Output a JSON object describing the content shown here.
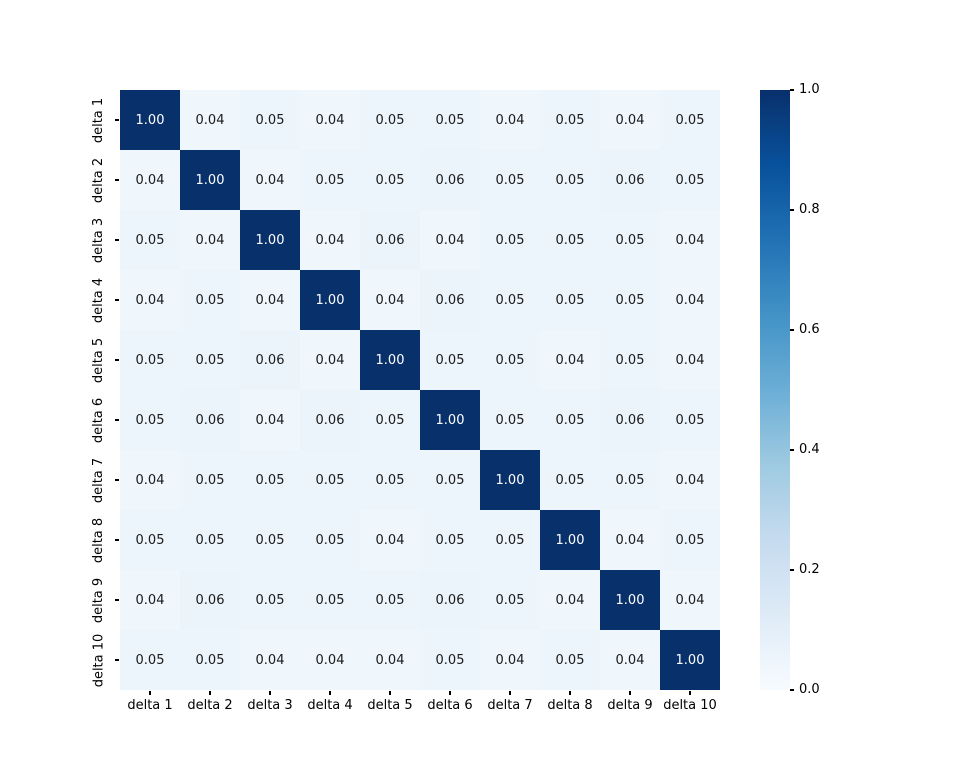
{
  "figure": {
    "background": "#ffffff",
    "axis_tick_color": "#000000",
    "axis_label_color": "#000000",
    "annotation_text_dark": "#1a1a1a",
    "annotation_text_light": "#ffffff",
    "colormap": {
      "name": "Blues",
      "stops": [
        "#f7fbff",
        "#deebf7",
        "#c6dbef",
        "#9ecae1",
        "#6baed6",
        "#4292c6",
        "#2171b5",
        "#08519c",
        "#08306b"
      ]
    }
  },
  "chart_data": {
    "type": "heatmap",
    "x_categories": [
      "delta 1",
      "delta 2",
      "delta 3",
      "delta 4",
      "delta 5",
      "delta 6",
      "delta 7",
      "delta 8",
      "delta 9",
      "delta 10"
    ],
    "y_categories": [
      "delta 1",
      "delta 2",
      "delta 3",
      "delta 4",
      "delta 5",
      "delta 6",
      "delta 7",
      "delta 8",
      "delta 9",
      "delta 10"
    ],
    "values": [
      [
        1.0,
        0.04,
        0.05,
        0.04,
        0.05,
        0.05,
        0.04,
        0.05,
        0.04,
        0.05
      ],
      [
        0.04,
        1.0,
        0.04,
        0.05,
        0.05,
        0.06,
        0.05,
        0.05,
        0.06,
        0.05
      ],
      [
        0.05,
        0.04,
        1.0,
        0.04,
        0.06,
        0.04,
        0.05,
        0.05,
        0.05,
        0.04
      ],
      [
        0.04,
        0.05,
        0.04,
        1.0,
        0.04,
        0.06,
        0.05,
        0.05,
        0.05,
        0.04
      ],
      [
        0.05,
        0.05,
        0.06,
        0.04,
        1.0,
        0.05,
        0.05,
        0.04,
        0.05,
        0.04
      ],
      [
        0.05,
        0.06,
        0.04,
        0.06,
        0.05,
        1.0,
        0.05,
        0.05,
        0.06,
        0.05
      ],
      [
        0.04,
        0.05,
        0.05,
        0.05,
        0.05,
        0.05,
        1.0,
        0.05,
        0.05,
        0.04
      ],
      [
        0.05,
        0.05,
        0.05,
        0.05,
        0.04,
        0.05,
        0.05,
        1.0,
        0.04,
        0.05
      ],
      [
        0.04,
        0.06,
        0.05,
        0.05,
        0.05,
        0.06,
        0.05,
        0.04,
        1.0,
        0.04
      ],
      [
        0.05,
        0.05,
        0.04,
        0.04,
        0.04,
        0.05,
        0.04,
        0.05,
        0.04,
        1.0
      ]
    ],
    "vmin": 0.0,
    "vmax": 1.0,
    "value_format_decimals": 2,
    "annotations": true,
    "grid": false,
    "legend": "none",
    "colorbar": {
      "position": "right",
      "tick_values": [
        1.0,
        0.8,
        0.6,
        0.4,
        0.2,
        0.0
      ],
      "tick_labels": [
        "1.0",
        "0.8",
        "0.6",
        "0.4",
        "0.2",
        "0.0"
      ]
    }
  }
}
